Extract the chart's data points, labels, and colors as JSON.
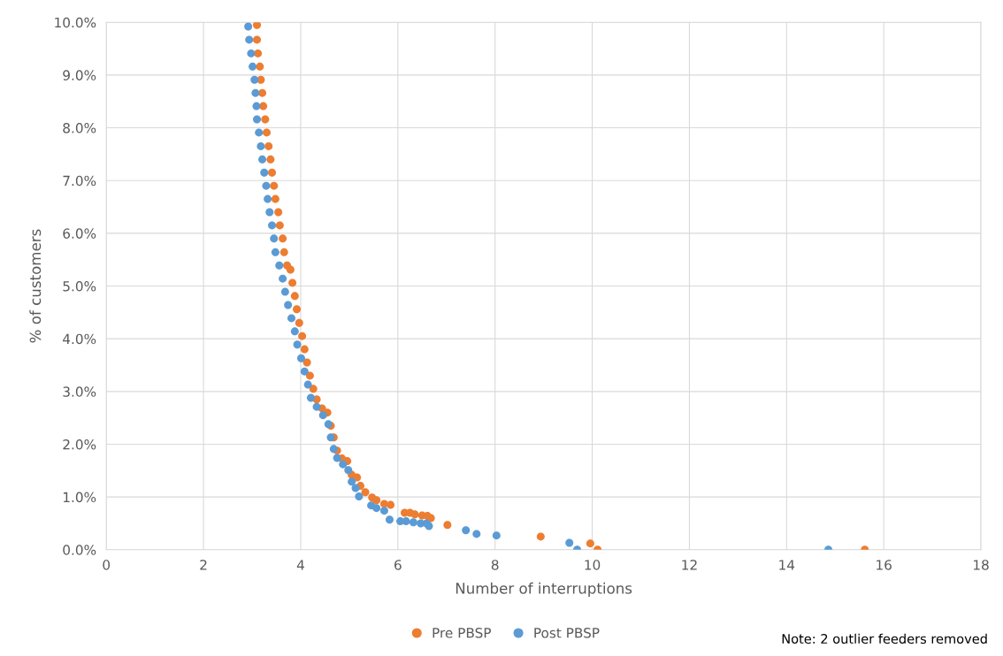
{
  "chart_data": {
    "type": "scatter",
    "xlabel": "Number of interruptions",
    "ylabel": "% of customers",
    "xlim": [
      0,
      18
    ],
    "xticks": [
      0,
      2,
      4,
      6,
      8,
      10,
      12,
      14,
      16,
      18
    ],
    "ylim": [
      0,
      10
    ],
    "yticks": [
      {
        "value": 0,
        "label": "0.0%"
      },
      {
        "value": 1,
        "label": "1.0%"
      },
      {
        "value": 2,
        "label": "2.0%"
      },
      {
        "value": 3,
        "label": "3.0%"
      },
      {
        "value": 4,
        "label": "4.0%"
      },
      {
        "value": 5,
        "label": "5.0%"
      },
      {
        "value": 6,
        "label": "6.0%"
      },
      {
        "value": 7,
        "label": "7.0%"
      },
      {
        "value": 8,
        "label": "8.0%"
      },
      {
        "value": 9,
        "label": "9.0%"
      },
      {
        "value": 10,
        "label": "10.0%"
      }
    ],
    "grid": true,
    "legend": "bottom",
    "marker": "circle",
    "annotations": [
      "Note: 2 outlier feeders removed"
    ],
    "series": [
      {
        "name": "Pre PBSP",
        "color": "#ed7d31",
        "x": [
          3.1,
          3.1,
          3.12,
          3.16,
          3.18,
          3.21,
          3.23,
          3.27,
          3.3,
          3.34,
          3.38,
          3.41,
          3.45,
          3.48,
          3.54,
          3.57,
          3.63,
          3.66,
          3.72,
          3.79,
          3.83,
          3.88,
          3.92,
          3.97,
          4.03,
          4.08,
          4.13,
          4.19,
          4.26,
          4.33,
          4.44,
          4.55,
          4.62,
          4.68,
          4.75,
          4.85,
          4.96,
          5.05,
          5.16,
          5.23,
          5.33,
          5.47,
          5.56,
          5.72,
          5.85,
          6.14,
          6.25,
          6.35,
          6.5,
          6.61,
          6.68,
          7.02,
          8.94,
          9.96,
          10.11,
          15.61
        ],
        "values": [
          9.95,
          9.67,
          9.41,
          9.16,
          8.91,
          8.66,
          8.41,
          8.16,
          7.91,
          7.65,
          7.4,
          7.15,
          6.9,
          6.65,
          6.4,
          6.15,
          5.9,
          5.64,
          5.39,
          5.31,
          5.06,
          4.81,
          4.56,
          4.3,
          4.05,
          3.8,
          3.55,
          3.3,
          3.05,
          2.85,
          2.68,
          2.6,
          2.35,
          2.13,
          1.88,
          1.73,
          1.68,
          1.42,
          1.37,
          1.21,
          1.09,
          0.99,
          0.94,
          0.87,
          0.85,
          0.7,
          0.7,
          0.67,
          0.65,
          0.64,
          0.6,
          0.47,
          0.25,
          0.12,
          0.0,
          0.0
        ]
      },
      {
        "name": "Post PBSP",
        "color": "#5b9bd5",
        "x": [
          2.92,
          2.94,
          2.98,
          3.01,
          3.05,
          3.07,
          3.09,
          3.1,
          3.14,
          3.18,
          3.21,
          3.25,
          3.29,
          3.32,
          3.36,
          3.41,
          3.45,
          3.48,
          3.56,
          3.63,
          3.68,
          3.74,
          3.81,
          3.88,
          3.93,
          4.01,
          4.08,
          4.15,
          4.21,
          4.33,
          4.46,
          4.57,
          4.62,
          4.68,
          4.75,
          4.87,
          4.98,
          5.05,
          5.13,
          5.2,
          5.45,
          5.56,
          5.72,
          5.83,
          6.05,
          6.17,
          6.32,
          6.47,
          6.59,
          6.64,
          7.4,
          7.62,
          8.03,
          9.53,
          9.69,
          14.86
        ],
        "values": [
          9.92,
          9.67,
          9.41,
          9.16,
          8.91,
          8.66,
          8.41,
          8.16,
          7.91,
          7.65,
          7.4,
          7.15,
          6.9,
          6.65,
          6.4,
          6.15,
          5.9,
          5.64,
          5.39,
          5.14,
          4.89,
          4.64,
          4.39,
          4.14,
          3.89,
          3.63,
          3.38,
          3.13,
          2.88,
          2.71,
          2.55,
          2.38,
          2.13,
          1.91,
          1.74,
          1.62,
          1.51,
          1.29,
          1.17,
          1.01,
          0.84,
          0.79,
          0.74,
          0.57,
          0.54,
          0.54,
          0.52,
          0.5,
          0.5,
          0.45,
          0.37,
          0.3,
          0.27,
          0.13,
          0.0,
          0.0
        ]
      }
    ]
  }
}
